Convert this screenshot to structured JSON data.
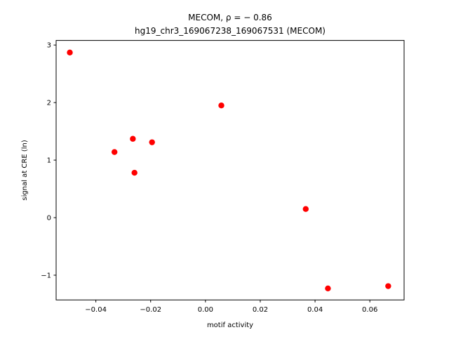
{
  "chart_data": {
    "type": "scatter",
    "title_line1": "MECOM, ρ = − 0.86",
    "title_line2": "hg19_chr3_169067238_169067531 (MECOM)",
    "xlabel": "motif activity",
    "ylabel": "signal at CRE (ln)",
    "xlim": [
      -0.0545,
      0.0725
    ],
    "ylim": [
      -1.43,
      3.08
    ],
    "xticks": [
      -0.04,
      -0.02,
      0.0,
      0.02,
      0.04,
      0.06
    ],
    "xtick_labels": [
      "−0.04",
      "−0.02",
      "0.00",
      "0.02",
      "0.04",
      "0.06"
    ],
    "yticks": [
      -1,
      0,
      1,
      2,
      3
    ],
    "ytick_labels": [
      "−1",
      "0",
      "1",
      "2",
      "3"
    ],
    "grid": false,
    "marker_color": "#ff0000",
    "series": [
      {
        "x": [
          -0.0495,
          0.0058,
          -0.0265,
          -0.0195,
          -0.0332,
          -0.0259,
          0.0366,
          0.0447,
          0.0667
        ],
        "y": [
          2.87,
          1.95,
          1.37,
          1.31,
          1.14,
          0.78,
          0.15,
          -1.23,
          -1.19
        ]
      }
    ]
  }
}
